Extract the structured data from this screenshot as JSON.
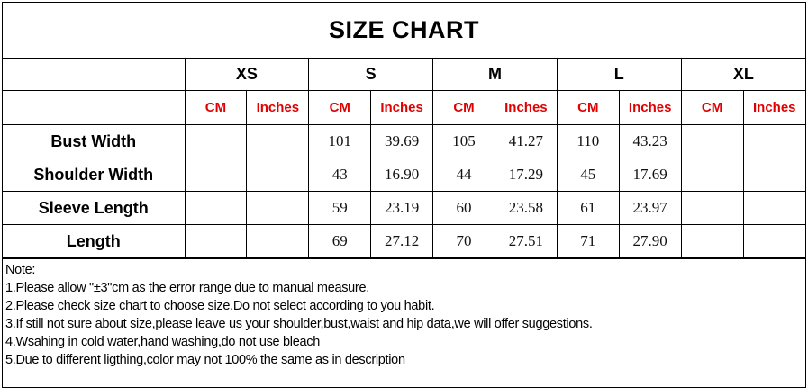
{
  "title": "SIZE CHART",
  "sizes": [
    "XS",
    "S",
    "M",
    "L",
    "XL"
  ],
  "units": [
    "CM",
    "Inches"
  ],
  "unit_color": "#e00000",
  "rows": [
    {
      "label": "Bust Width",
      "values": [
        "",
        "",
        "101",
        "39.69",
        "105",
        "41.27",
        "110",
        "43.23",
        "",
        ""
      ]
    },
    {
      "label": "Shoulder Width",
      "values": [
        "",
        "",
        "43",
        "16.90",
        "44",
        "17.29",
        "45",
        "17.69",
        "",
        ""
      ]
    },
    {
      "label": "Sleeve Length",
      "values": [
        "",
        "",
        "59",
        "23.19",
        "60",
        "23.58",
        "61",
        "23.97",
        "",
        ""
      ]
    },
    {
      "label": "Length",
      "values": [
        "",
        "",
        "69",
        "27.12",
        "70",
        "27.51",
        "71",
        "27.90",
        "",
        ""
      ]
    }
  ],
  "notes": {
    "heading": "Note:",
    "items": [
      "1.Please allow \"±3\"cm as the error range due to manual measure.",
      "2.Please check size chart to choose size.Do not select according to you habit.",
      "3.If still not sure about size,please leave us your shoulder,bust,waist and hip data,we will offer suggestions.",
      "4.Wsahing in cold water,hand washing,do not use bleach",
      "5.Due to different ligthing,color may not 100% the same as in description"
    ]
  }
}
